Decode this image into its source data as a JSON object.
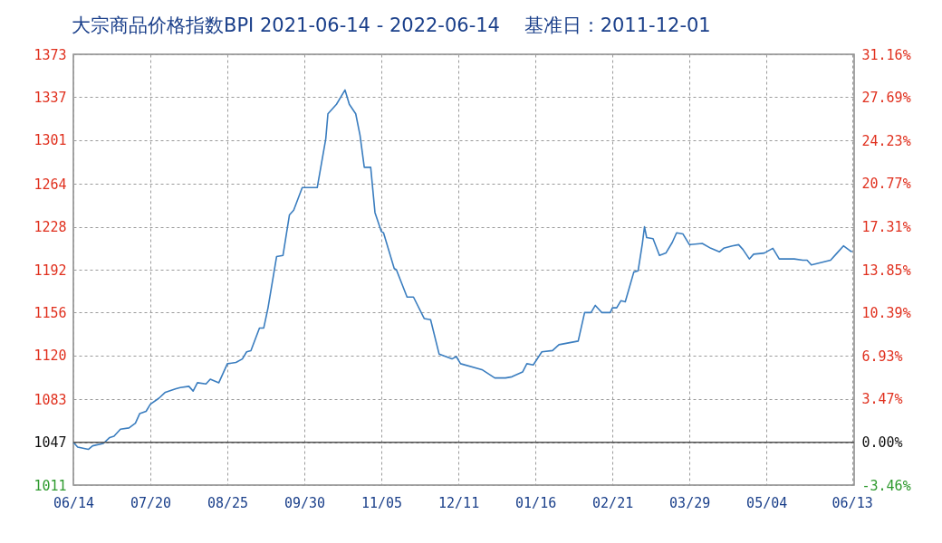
{
  "chart_data": {
    "type": "line",
    "title": "大宗商品价格指数BPI 2021-06-14 - 2022-06-14    基准日：2011-12-01",
    "x": [
      "2021-06-14",
      "2021-06-16",
      "2021-06-21",
      "2021-06-23",
      "2021-06-28",
      "2021-07-01",
      "2021-07-03",
      "2021-07-06",
      "2021-07-10",
      "2021-07-13",
      "2021-07-15",
      "2021-07-18",
      "2021-07-20",
      "2021-07-24",
      "2021-07-27",
      "2021-08-01",
      "2021-08-03",
      "2021-08-07",
      "2021-08-09",
      "2021-08-11",
      "2021-08-15",
      "2021-08-17",
      "2021-08-21",
      "2021-08-25",
      "2021-08-29",
      "2021-09-01",
      "2021-09-03",
      "2021-09-05",
      "2021-09-09",
      "2021-09-11",
      "2021-09-13",
      "2021-09-17",
      "2021-09-20",
      "2021-09-23",
      "2021-09-25",
      "2021-09-29",
      "2021-10-06",
      "2021-10-10",
      "2021-10-11",
      "2021-10-15",
      "2021-10-19",
      "2021-10-21",
      "2021-10-24",
      "2021-10-26",
      "2021-10-28",
      "2021-10-31",
      "2021-11-02",
      "2021-11-05",
      "2021-11-06",
      "2021-11-11",
      "2021-11-12",
      "2021-11-17",
      "2021-11-20",
      "2021-11-25",
      "2021-11-28",
      "2021-12-02",
      "2021-12-08",
      "2021-12-10",
      "2021-12-12",
      "2021-12-22",
      "2021-12-28",
      "2022-01-02",
      "2022-01-05",
      "2022-01-10",
      "2022-01-12",
      "2022-01-15",
      "2022-01-19",
      "2022-01-24",
      "2022-01-27",
      "2022-02-05",
      "2022-02-08",
      "2022-02-11",
      "2022-02-13",
      "2022-02-16",
      "2022-02-20",
      "2022-02-21",
      "2022-02-23",
      "2022-02-25",
      "2022-02-27",
      "2022-03-03",
      "2022-03-05",
      "2022-03-07",
      "2022-03-08",
      "2022-03-09",
      "2022-03-12",
      "2022-03-15",
      "2022-03-18",
      "2022-03-21",
      "2022-03-23",
      "2022-03-26",
      "2022-03-29",
      "2022-04-04",
      "2022-04-08",
      "2022-04-12",
      "2022-04-14",
      "2022-04-18",
      "2022-04-21",
      "2022-04-23",
      "2022-04-26",
      "2022-04-28",
      "2022-05-03",
      "2022-05-07",
      "2022-05-10",
      "2022-05-17",
      "2022-05-21",
      "2022-05-23",
      "2022-05-25",
      "2022-06-03",
      "2022-06-06",
      "2022-06-09",
      "2022-06-12",
      "2022-06-13"
    ],
    "series": [
      {
        "color": "#3a7dbf",
        "values": [
          1047,
          1043,
          1041,
          1044,
          1046,
          1051,
          1052,
          1058,
          1059,
          1063,
          1071,
          1073,
          1079,
          1084,
          1089,
          1092,
          1093,
          1094,
          1090,
          1097,
          1096,
          1100,
          1097,
          1113,
          1114,
          1117,
          1123,
          1124,
          1143,
          1143,
          1160,
          1203,
          1204,
          1238,
          1242,
          1261,
          1261,
          1302,
          1323,
          1331,
          1343,
          1331,
          1323,
          1305,
          1278,
          1278,
          1240,
          1224,
          1223,
          1193,
          1192,
          1169,
          1169,
          1151,
          1150,
          1121,
          1117,
          1119,
          1113,
          1108,
          1101,
          1101,
          1102,
          1106,
          1113,
          1112,
          1123,
          1124,
          1129,
          1132,
          1156,
          1156,
          1162,
          1156,
          1156,
          1160,
          1160,
          1166,
          1165,
          1190,
          1191,
          1214,
          1228,
          1219,
          1218,
          1204,
          1206,
          1215,
          1223,
          1222,
          1213,
          1214,
          1210,
          1207,
          1210,
          1212,
          1213,
          1209,
          1201,
          1205,
          1206,
          1210,
          1201,
          1201,
          1200,
          1200,
          1196,
          1200,
          1206,
          1212,
          1208,
          1207
        ]
      }
    ],
    "xlim": [
      "2021-06-14",
      "2022-06-14"
    ],
    "xticks": [
      {
        "value": "2021-06-14",
        "label": "06/14"
      },
      {
        "value": "2021-07-20",
        "label": "07/20"
      },
      {
        "value": "2021-08-25",
        "label": "08/25"
      },
      {
        "value": "2021-09-30",
        "label": "09/30"
      },
      {
        "value": "2021-11-05",
        "label": "11/05"
      },
      {
        "value": "2021-12-11",
        "label": "12/11"
      },
      {
        "value": "2022-01-16",
        "label": "01/16"
      },
      {
        "value": "2022-02-21",
        "label": "02/21"
      },
      {
        "value": "2022-03-29",
        "label": "03/29"
      },
      {
        "value": "2022-05-04",
        "label": "05/04"
      },
      {
        "value": "2022-06-13",
        "label": "06/13"
      }
    ],
    "ylim": [
      1011,
      1373
    ],
    "yticks": [
      1011,
      1047,
      1083,
      1120,
      1156,
      1192,
      1228,
      1264,
      1301,
      1337,
      1373
    ],
    "y2lim": [
      -3.46,
      31.16
    ],
    "y2ticks": [
      {
        "value": -3.46,
        "label": "-3.46%"
      },
      {
        "value": 0,
        "label": "0.00%"
      },
      {
        "value": 3.47,
        "label": "3.47%"
      },
      {
        "value": 6.93,
        "label": "6.93%"
      },
      {
        "value": 10.39,
        "label": "10.39%"
      },
      {
        "value": 13.85,
        "label": "13.85%"
      },
      {
        "value": 17.31,
        "label": "17.31%"
      },
      {
        "value": 20.77,
        "label": "20.77%"
      },
      {
        "value": 24.23,
        "label": "24.23%"
      },
      {
        "value": 27.69,
        "label": "27.69%"
      },
      {
        "value": 31.16,
        "label": "31.16%"
      }
    ],
    "ref_lines": [
      {
        "axis": "y",
        "value": 1047,
        "color": "#555555"
      }
    ],
    "grid": true,
    "legend": false,
    "marker": "none",
    "line_style": "solid"
  }
}
